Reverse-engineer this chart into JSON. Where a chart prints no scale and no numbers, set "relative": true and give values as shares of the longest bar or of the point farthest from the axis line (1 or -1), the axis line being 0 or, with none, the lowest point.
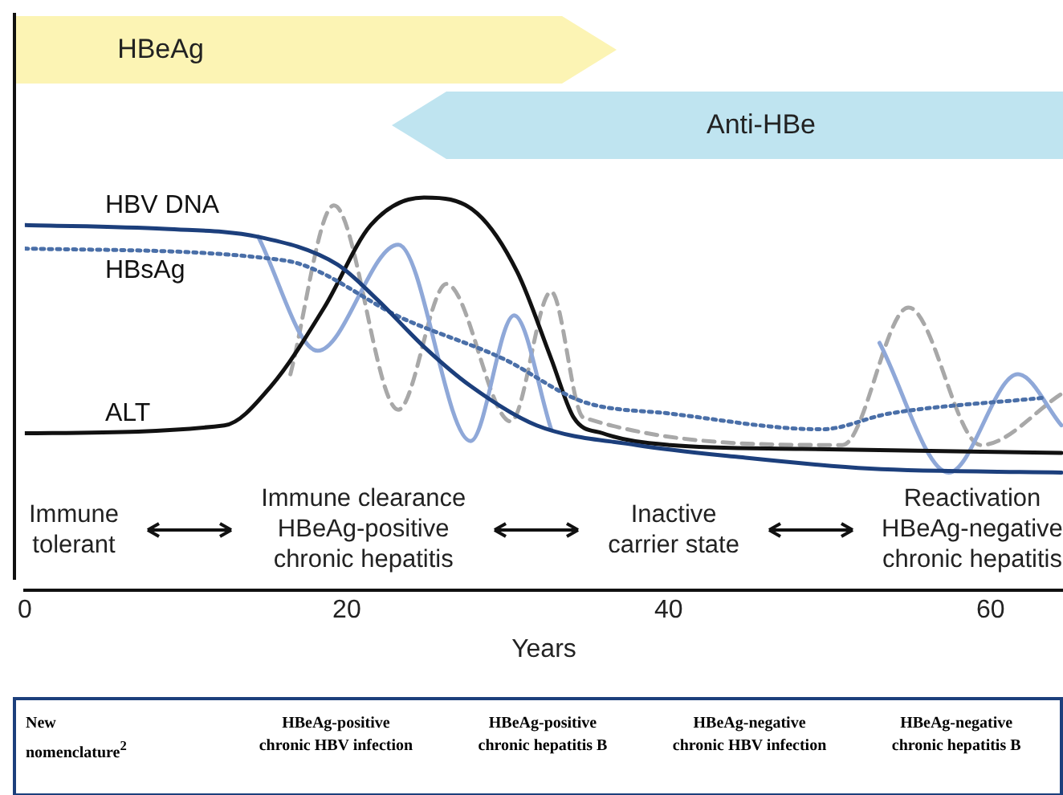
{
  "chart_data": {
    "type": "line",
    "xlabel": "Years",
    "relative": true,
    "xlim": [
      0,
      64.5
    ],
    "xticks": [
      0,
      20,
      40,
      60
    ],
    "grid": false,
    "legend": false,
    "marker": "none",
    "series": [
      {
        "name": "HBV DNA",
        "color": "#1c3f7c",
        "line_style": "solid",
        "x": [
          0,
          8.7,
          14.5,
          19.4,
          21.9,
          24.8,
          27.7,
          31.8,
          38,
          44.2,
          52.5,
          64.4
        ],
        "values": [
          0.93,
          0.92,
          0.9,
          0.83,
          0.74,
          0.62,
          0.52,
          0.42,
          0.37,
          0.34,
          0.31,
          0.3
        ]
      },
      {
        "name": "HBsAg",
        "color": "#4a6fa8",
        "line_style": "dotted",
        "x": [
          0,
          16.1,
          23.6,
          29.7,
          34.7,
          40.1,
          49.5,
          53.7,
          63.2
        ],
        "values": [
          0.87,
          0.84,
          0.69,
          0.59,
          0.48,
          0.45,
          0.41,
          0.45,
          0.49
        ]
      },
      {
        "name": "ALT",
        "color": "#111111",
        "line_style": "solid",
        "x": [
          0,
          12.4,
          15.3,
          18.6,
          21.5,
          24.8,
          28.1,
          30.6,
          32.7,
          34.1,
          35.9,
          40.1,
          48.3,
          64.4
        ],
        "values": [
          0.4,
          0.42,
          0.52,
          0.72,
          0.93,
          1,
          0.96,
          0.81,
          0.59,
          0.44,
          0.4,
          0.37,
          0.36,
          0.35
        ]
      },
      {
        "color": "#8fa8d8",
        "line_style": "solid",
        "x": [
          14.5,
          18.2,
          23.2,
          27.7,
          30.4,
          32.7,
          49.5,
          53.1,
          57.4,
          61.7,
          64.4
        ],
        "values": [
          0.9,
          0.61,
          0.88,
          0.38,
          0.7,
          0.41,
          null,
          0.63,
          0.3,
          0.55,
          0.42
        ]
      },
      {
        "color": "#a8a8a8",
        "line_style": "dashed",
        "x": [
          16.5,
          19.2,
          23.2,
          26.2,
          30.2,
          32.7,
          34.7,
          50.8,
          54.9,
          59.4,
          64.4
        ],
        "values": [
          0.55,
          0.98,
          0.46,
          0.78,
          0.43,
          0.76,
          0.44,
          0.37,
          0.72,
          0.37,
          0.5
        ]
      }
    ],
    "annotations": [
      "HBeAg",
      "Anti-HBe",
      "Immune\ntolerant",
      "Immune clearance\nHBeAg-positive\nchronic hepatitis",
      "Inactive\ncarrier state",
      "Reactivation\nHBeAg-negative\nchronic hepatitis",
      "New\nnomenclature$^{2}$",
      "HBeAg-positive\nchronic HBV infection",
      "HBeAg-positive\nchronic hepatitis B",
      "HBeAg-negative\nchronic HBV infection",
      "HBeAg-negative\nchronic hepatitis B"
    ]
  }
}
